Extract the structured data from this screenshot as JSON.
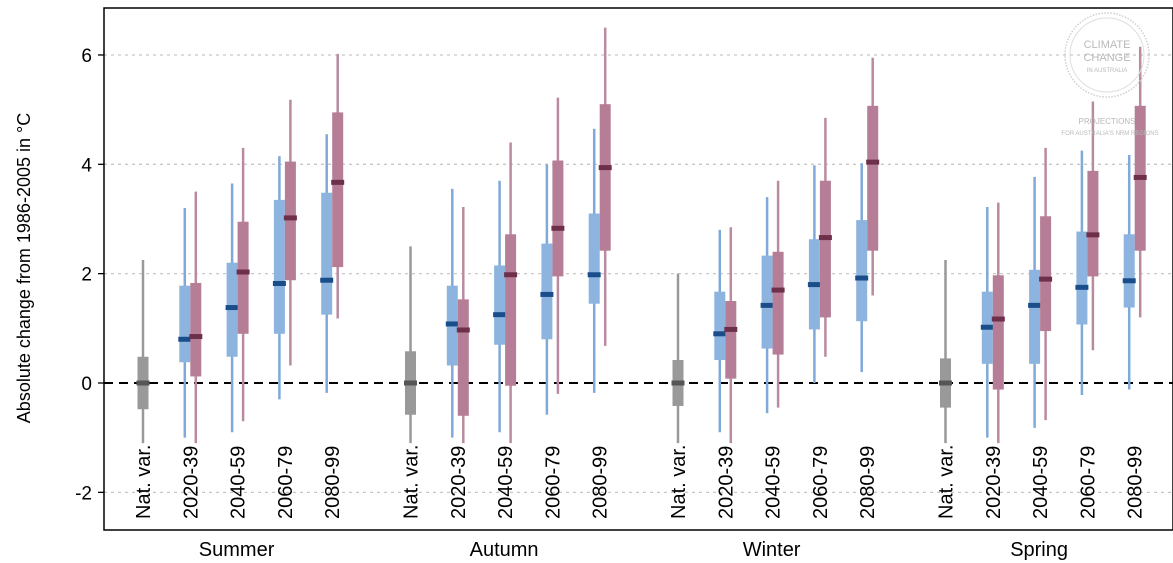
{
  "chart_data": {
    "type": "boxplot",
    "ylabel": "Absolute change from 1986-2005 in  °C",
    "ylim": [
      -2.7,
      6.9
    ],
    "yticks": [
      6,
      4,
      2,
      0,
      -2
    ],
    "ytick_labels": [
      "6",
      "4",
      "2",
      "0",
      "-2"
    ],
    "grid": "horizontal dotted",
    "reference_line": 0,
    "seasons": [
      "Summer",
      "Autumn",
      "Winter",
      "Spring"
    ],
    "categories": [
      "Nat. var.",
      "2020-39",
      "2040-59",
      "2060-79",
      "2080-99"
    ],
    "colors": {
      "natural_variability": "#999999",
      "natural_variability_median": "#555555",
      "blue_box": "#8db4df",
      "blue_whisker": "#7ea9d8",
      "blue_median": "#1a4e8a",
      "purple_box": "#b57e96",
      "purple_whisker": "#b98aa0",
      "purple_median": "#6e2f4b",
      "grid": "#c8c8c8",
      "zero_line": "#000000"
    },
    "series": [
      {
        "season": "Summer",
        "natural_variability": {
          "wlo": -1.1,
          "q1": -0.48,
          "median": 0,
          "q3": 0.48,
          "whi": 2.25
        },
        "blue": [
          {
            "period": "2020-39",
            "wlo": -1.0,
            "q1": 0.38,
            "median": 0.8,
            "q3": 1.78,
            "whi": 3.2
          },
          {
            "period": "2040-59",
            "wlo": -0.9,
            "q1": 0.48,
            "median": 1.38,
            "q3": 2.2,
            "whi": 3.65
          },
          {
            "period": "2060-79",
            "wlo": -0.3,
            "q1": 0.9,
            "median": 1.82,
            "q3": 3.35,
            "whi": 4.15
          },
          {
            "period": "2080-99",
            "wlo": -0.18,
            "q1": 1.25,
            "median": 1.88,
            "q3": 3.48,
            "whi": 4.55
          }
        ],
        "purple": [
          {
            "period": "2020-39",
            "wlo": -1.1,
            "q1": 0.12,
            "median": 0.85,
            "q3": 1.83,
            "whi": 3.5
          },
          {
            "period": "2040-59",
            "wlo": -0.7,
            "q1": 0.9,
            "median": 2.03,
            "q3": 2.95,
            "whi": 4.3
          },
          {
            "period": "2060-79",
            "wlo": 0.32,
            "q1": 1.88,
            "median": 3.02,
            "q3": 4.05,
            "whi": 5.18
          },
          {
            "period": "2080-99",
            "wlo": 1.18,
            "q1": 2.12,
            "median": 3.67,
            "q3": 4.95,
            "whi": 6.02
          }
        ]
      },
      {
        "season": "Autumn",
        "natural_variability": {
          "wlo": -1.1,
          "q1": -0.58,
          "median": 0,
          "q3": 0.58,
          "whi": 2.5
        },
        "blue": [
          {
            "period": "2020-39",
            "wlo": -1.0,
            "q1": 0.32,
            "median": 1.08,
            "q3": 1.78,
            "whi": 3.55
          },
          {
            "period": "2040-59",
            "wlo": -0.9,
            "q1": 0.7,
            "median": 1.25,
            "q3": 2.15,
            "whi": 3.7
          },
          {
            "period": "2060-79",
            "wlo": -0.58,
            "q1": 0.8,
            "median": 1.62,
            "q3": 2.55,
            "whi": 4.0
          },
          {
            "period": "2080-99",
            "wlo": -0.18,
            "q1": 1.45,
            "median": 1.98,
            "q3": 3.1,
            "whi": 4.65
          }
        ],
        "purple": [
          {
            "period": "2020-39",
            "wlo": -1.1,
            "q1": -0.6,
            "median": 0.97,
            "q3": 1.53,
            "whi": 3.22
          },
          {
            "period": "2040-59",
            "wlo": -1.1,
            "q1": -0.05,
            "median": 1.98,
            "q3": 2.72,
            "whi": 4.4
          },
          {
            "period": "2060-79",
            "wlo": -0.2,
            "q1": 1.95,
            "median": 2.83,
            "q3": 4.07,
            "whi": 5.22
          },
          {
            "period": "2080-99",
            "wlo": 0.68,
            "q1": 2.42,
            "median": 3.94,
            "q3": 5.1,
            "whi": 6.5
          }
        ]
      },
      {
        "season": "Winter",
        "natural_variability": {
          "wlo": -1.1,
          "q1": -0.42,
          "median": 0,
          "q3": 0.42,
          "whi": 2.0
        },
        "blue": [
          {
            "period": "2020-39",
            "wlo": -0.9,
            "q1": 0.42,
            "median": 0.9,
            "q3": 1.67,
            "whi": 2.8
          },
          {
            "period": "2040-59",
            "wlo": -0.55,
            "q1": 0.63,
            "median": 1.42,
            "q3": 2.33,
            "whi": 3.4
          },
          {
            "period": "2060-79",
            "wlo": 0.0,
            "q1": 0.98,
            "median": 1.8,
            "q3": 2.63,
            "whi": 3.98
          },
          {
            "period": "2080-99",
            "wlo": 0.2,
            "q1": 1.13,
            "median": 1.92,
            "q3": 2.98,
            "whi": 4.02
          }
        ],
        "purple": [
          {
            "period": "2020-39",
            "wlo": -1.1,
            "q1": 0.08,
            "median": 0.98,
            "q3": 1.5,
            "whi": 2.85
          },
          {
            "period": "2040-59",
            "wlo": -0.45,
            "q1": 0.52,
            "median": 1.7,
            "q3": 2.4,
            "whi": 3.7
          },
          {
            "period": "2060-79",
            "wlo": 0.48,
            "q1": 1.2,
            "median": 2.66,
            "q3": 3.7,
            "whi": 4.85
          },
          {
            "period": "2080-99",
            "wlo": 1.6,
            "q1": 2.42,
            "median": 4.04,
            "q3": 5.07,
            "whi": 5.95
          }
        ]
      },
      {
        "season": "Spring",
        "natural_variability": {
          "wlo": -1.1,
          "q1": -0.45,
          "median": 0,
          "q3": 0.45,
          "whi": 2.25
        },
        "blue": [
          {
            "period": "2020-39",
            "wlo": -1.0,
            "q1": 0.35,
            "median": 1.02,
            "q3": 1.67,
            "whi": 3.22
          },
          {
            "period": "2040-59",
            "wlo": -0.82,
            "q1": 0.35,
            "median": 1.42,
            "q3": 2.07,
            "whi": 3.77
          },
          {
            "period": "2060-79",
            "wlo": -0.22,
            "q1": 1.07,
            "median": 1.75,
            "q3": 2.77,
            "whi": 4.25
          },
          {
            "period": "2080-99",
            "wlo": -0.12,
            "q1": 1.38,
            "median": 1.87,
            "q3": 2.72,
            "whi": 4.17
          }
        ],
        "purple": [
          {
            "period": "2020-39",
            "wlo": -1.1,
            "q1": -0.12,
            "median": 1.17,
            "q3": 1.97,
            "whi": 3.3
          },
          {
            "period": "2040-59",
            "wlo": -0.68,
            "q1": 0.95,
            "median": 1.9,
            "q3": 3.05,
            "whi": 4.3
          },
          {
            "period": "2060-79",
            "wlo": 0.6,
            "q1": 1.95,
            "median": 2.71,
            "q3": 3.88,
            "whi": 5.15
          },
          {
            "period": "2080-99",
            "wlo": 1.2,
            "q1": 2.42,
            "median": 3.76,
            "q3": 5.07,
            "whi": 6.15
          }
        ]
      }
    ]
  },
  "logo": {
    "line1": "CLIMATE",
    "line2": "CHANGE",
    "line3": "IN AUSTRALIA",
    "line4": "PROJECTIONS",
    "line5": "FOR AUSTRALIA'S NRM REGIONS"
  }
}
